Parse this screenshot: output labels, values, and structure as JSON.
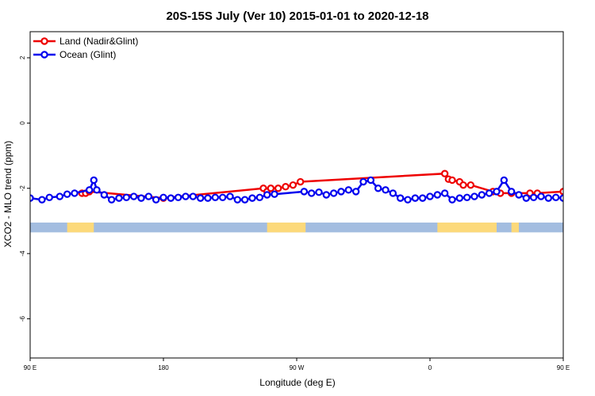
{
  "chart_data": {
    "type": "line",
    "title": "20S-15S July (Ver 10)   2015-01-01 to 2020-12-18",
    "xlabel": "Longitude (deg E)",
    "ylabel": "XCO2 - MLO trend (ppm)",
    "xlim": [
      90,
      450
    ],
    "ylim": [
      -7.2,
      2.8
    ],
    "x_ticks": [
      {
        "value": 90,
        "label": "90 E"
      },
      {
        "value": 180,
        "label": "180"
      },
      {
        "value": 270,
        "label": "90 W"
      },
      {
        "value": 360,
        "label": "0"
      },
      {
        "value": 450,
        "label": "90 E"
      },
      {
        "value": 540,
        "label": "180"
      }
    ],
    "y_ticks": [
      {
        "value": 2,
        "label": "2"
      },
      {
        "value": 0,
        "label": "0"
      },
      {
        "value": -2,
        "label": "-2"
      },
      {
        "value": -4,
        "label": "-4"
      },
      {
        "value": -6,
        "label": "-6"
      }
    ],
    "legend_position": "top-left",
    "grid": false,
    "series": [
      {
        "name": "Land (Nadir&Glint)",
        "color": "#ee0000",
        "x": [
          125,
          127.5,
          130,
          180,
          247.5,
          250,
          252.5,
          257.5,
          262.5,
          267.5,
          272.5,
          370,
          372.5,
          375,
          380,
          382.5,
          387.5,
          402.5,
          407.5,
          415,
          427.5,
          432.5,
          450
        ],
        "y": [
          -2.15,
          -2.15,
          -2.1,
          -2.3,
          -2.0,
          -2.1,
          -2.0,
          -2.0,
          -1.95,
          -1.9,
          -1.8,
          -1.55,
          -1.72,
          -1.75,
          -1.8,
          -1.9,
          -1.9,
          -2.1,
          -2.15,
          -2.15,
          -2.15,
          -2.15,
          -2.1
        ]
      },
      {
        "name": "Ocean (Glint)",
        "color": "#0000ee",
        "x": [
          90,
          98,
          103,
          110,
          115,
          120,
          130,
          133,
          135,
          140,
          145,
          150,
          155,
          160,
          165,
          170,
          175,
          180,
          185,
          190,
          195,
          200,
          205,
          210,
          215,
          220,
          225,
          230,
          235,
          240,
          245,
          250,
          255,
          275,
          280,
          285,
          290,
          295,
          300,
          305,
          310,
          315,
          320,
          325,
          330,
          335,
          340,
          345,
          350,
          355,
          360,
          365,
          370,
          375,
          380,
          385,
          390,
          395,
          400,
          405,
          410,
          415,
          420,
          425,
          430,
          435,
          440,
          445,
          450
        ],
        "y": [
          -2.3,
          -2.35,
          -2.28,
          -2.25,
          -2.18,
          -2.15,
          -2.05,
          -1.75,
          -2.05,
          -2.2,
          -2.35,
          -2.3,
          -2.28,
          -2.25,
          -2.3,
          -2.25,
          -2.35,
          -2.28,
          -2.3,
          -2.28,
          -2.25,
          -2.25,
          -2.3,
          -2.3,
          -2.28,
          -2.28,
          -2.25,
          -2.35,
          -2.35,
          -2.3,
          -2.28,
          -2.2,
          -2.18,
          -2.1,
          -2.15,
          -2.12,
          -2.2,
          -2.15,
          -2.1,
          -2.05,
          -2.1,
          -1.8,
          -1.75,
          -2.0,
          -2.05,
          -2.15,
          -2.3,
          -2.35,
          -2.3,
          -2.3,
          -2.25,
          -2.2,
          -2.15,
          -2.35,
          -2.3,
          -2.28,
          -2.25,
          -2.2,
          -2.15,
          -2.1,
          -1.75,
          -2.1,
          -2.2,
          -2.3,
          -2.28,
          -2.25,
          -2.3,
          -2.28,
          -2.3
        ]
      }
    ],
    "surface_strip": {
      "y_range": [
        -3.35,
        -3.05
      ],
      "ocean_color": "#a3bde0",
      "land_color": "#fcd97a",
      "land_segments": [
        [
          115,
          133
        ],
        [
          250,
          276
        ],
        [
          365,
          405
        ],
        [
          415,
          420
        ],
        [
          470,
          500
        ]
      ]
    }
  }
}
